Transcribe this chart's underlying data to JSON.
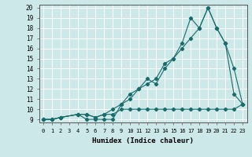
{
  "xlabel": "Humidex (Indice chaleur)",
  "background_color": "#cce8e8",
  "grid_color": "#ffffff",
  "line_color": "#1a6b6b",
  "xlim": [
    -0.5,
    23.5
  ],
  "ylim": [
    8.7,
    20.3
  ],
  "xticks": [
    0,
    1,
    2,
    3,
    4,
    5,
    6,
    7,
    8,
    9,
    10,
    11,
    12,
    13,
    14,
    15,
    16,
    17,
    18,
    19,
    20,
    21,
    22,
    23
  ],
  "yticks": [
    9,
    10,
    11,
    12,
    13,
    14,
    15,
    16,
    17,
    18,
    19,
    20
  ],
  "series1_x": [
    0,
    1,
    2,
    4,
    5,
    6,
    7,
    8,
    9,
    10,
    11,
    12,
    13,
    14,
    15,
    16,
    17,
    18,
    19,
    20,
    21,
    22,
    23
  ],
  "series1_y": [
    9,
    9,
    9.2,
    9.5,
    9,
    9,
    9,
    9,
    10.5,
    11.5,
    12,
    13,
    12.5,
    14,
    15,
    16.5,
    19,
    18,
    20,
    18,
    16.5,
    11.5,
    10.5
  ],
  "series2_x": [
    0,
    1,
    2,
    4,
    5,
    6,
    7,
    8,
    9,
    10,
    11,
    12,
    13,
    14,
    15,
    16,
    17,
    18,
    19,
    20,
    21,
    22,
    23
  ],
  "series2_y": [
    9,
    9,
    9.2,
    9.5,
    9.5,
    9.2,
    9.5,
    10,
    10.5,
    11,
    12,
    12.5,
    13,
    14.5,
    15,
    16,
    17,
    18,
    20,
    18,
    16.5,
    14,
    10.5
  ],
  "series3_x": [
    0,
    1,
    2,
    4,
    5,
    6,
    7,
    8,
    9,
    10,
    11,
    12,
    13,
    14,
    15,
    16,
    17,
    18,
    19,
    20,
    21,
    22,
    23
  ],
  "series3_y": [
    9,
    9,
    9.2,
    9.5,
    9.5,
    9.2,
    9.5,
    9.5,
    10,
    10,
    10,
    10,
    10,
    10,
    10,
    10,
    10,
    10,
    10,
    10,
    10,
    10,
    10.5
  ]
}
